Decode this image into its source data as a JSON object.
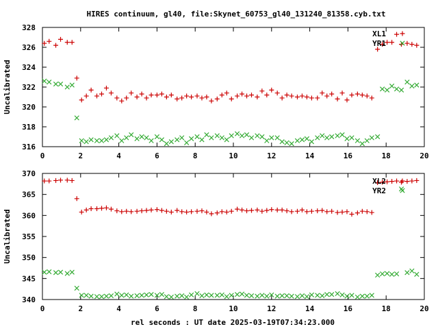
{
  "chart_data": [
    {
      "type": "scatter",
      "title": "HIRES continuum, gl40, file:Skynet_60753_gl40_131240_81358.cyb.txt",
      "xlabel": "",
      "ylabel": "Uncalibrated",
      "xlim": [
        0,
        20
      ],
      "ylim": [
        316,
        328
      ],
      "xticks": [
        0,
        2,
        4,
        6,
        8,
        10,
        12,
        14,
        16,
        18,
        20
      ],
      "yticks": [
        316,
        318,
        320,
        322,
        324,
        326,
        328
      ],
      "legend_position": "top-right",
      "series": [
        {
          "name": "XL1",
          "marker": "+",
          "color": "#cc0000",
          "x": [
            0.1,
            0.35,
            0.7,
            0.95,
            1.3,
            1.55,
            1.8,
            2.05,
            2.3,
            2.55,
            2.85,
            3.1,
            3.35,
            3.6,
            3.9,
            4.15,
            4.4,
            4.65,
            4.95,
            5.2,
            5.45,
            5.7,
            6.0,
            6.25,
            6.5,
            6.75,
            7.05,
            7.3,
            7.55,
            7.8,
            8.1,
            8.35,
            8.6,
            8.85,
            9.15,
            9.4,
            9.65,
            9.9,
            10.2,
            10.45,
            10.7,
            10.95,
            11.25,
            11.5,
            11.75,
            12.0,
            12.3,
            12.55,
            12.8,
            13.05,
            13.35,
            13.6,
            13.85,
            14.1,
            14.4,
            14.65,
            14.9,
            15.15,
            15.45,
            15.7,
            15.95,
            16.2,
            16.5,
            16.75,
            17.0,
            17.25,
            17.55,
            17.8,
            18.05,
            18.3,
            18.55,
            18.8,
            19.1,
            19.35,
            19.6
          ],
          "y": [
            326.4,
            326.6,
            326.2,
            326.8,
            326.5,
            326.5,
            322.9,
            320.7,
            321.1,
            321.7,
            321.1,
            321.3,
            321.9,
            321.4,
            320.9,
            320.6,
            320.9,
            321.4,
            321.0,
            321.3,
            320.9,
            321.2,
            321.2,
            321.3,
            321.0,
            321.2,
            320.8,
            320.9,
            321.1,
            321.0,
            321.1,
            320.9,
            321.0,
            320.6,
            320.8,
            321.2,
            321.4,
            320.8,
            321.1,
            321.3,
            321.1,
            321.2,
            321.0,
            321.6,
            321.2,
            321.7,
            321.4,
            320.9,
            321.2,
            321.1,
            321.0,
            321.1,
            321.0,
            320.9,
            320.9,
            321.4,
            321.1,
            321.3,
            320.8,
            321.4,
            320.7,
            321.2,
            321.3,
            321.2,
            321.1,
            320.9,
            325.8,
            326.3,
            326.5,
            326.5,
            327.3,
            326.3,
            326.4,
            326.3,
            326.2
          ]
        },
        {
          "name": "YR1",
          "marker": "x",
          "color": "#33aa33",
          "x": [
            0.1,
            0.35,
            0.7,
            0.95,
            1.3,
            1.55,
            1.8,
            2.05,
            2.3,
            2.55,
            2.85,
            3.1,
            3.35,
            3.6,
            3.9,
            4.15,
            4.4,
            4.65,
            4.95,
            5.2,
            5.45,
            5.7,
            6.0,
            6.25,
            6.5,
            6.75,
            7.05,
            7.3,
            7.55,
            7.8,
            8.1,
            8.35,
            8.6,
            8.85,
            9.15,
            9.4,
            9.65,
            9.9,
            10.2,
            10.45,
            10.7,
            10.95,
            11.25,
            11.5,
            11.75,
            12.0,
            12.3,
            12.55,
            12.8,
            13.05,
            13.35,
            13.6,
            13.85,
            14.1,
            14.4,
            14.65,
            14.9,
            15.15,
            15.45,
            15.7,
            15.95,
            16.2,
            16.5,
            16.75,
            17.0,
            17.25,
            17.55,
            17.8,
            18.05,
            18.3,
            18.55,
            18.8,
            19.1,
            19.35,
            19.6
          ],
          "y": [
            322.6,
            322.5,
            322.3,
            322.3,
            322.0,
            322.2,
            318.9,
            316.6,
            316.5,
            316.7,
            316.6,
            316.6,
            316.7,
            316.9,
            317.1,
            316.6,
            316.9,
            317.2,
            316.8,
            317.0,
            316.9,
            316.6,
            317.0,
            316.7,
            316.3,
            316.5,
            316.7,
            316.9,
            316.4,
            316.8,
            317.0,
            316.7,
            317.2,
            316.9,
            317.1,
            316.9,
            316.7,
            317.1,
            317.3,
            317.1,
            317.2,
            316.9,
            317.1,
            317.0,
            316.6,
            316.9,
            316.9,
            316.5,
            316.4,
            316.3,
            316.6,
            316.7,
            316.8,
            316.5,
            316.9,
            317.1,
            316.9,
            317.0,
            317.1,
            317.2,
            316.8,
            316.9,
            316.6,
            316.3,
            316.6,
            316.9,
            317.0,
            321.8,
            321.7,
            322.1,
            321.8,
            321.7,
            322.5,
            322.1,
            322.2
          ]
        }
      ]
    },
    {
      "type": "scatter",
      "title": "",
      "xlabel": "rel seconds : UT date 2025-03-19T07:34:23.000",
      "ylabel": "Uncalibrated",
      "xlim": [
        0,
        20
      ],
      "ylim": [
        340,
        370
      ],
      "xticks": [
        0,
        2,
        4,
        6,
        8,
        10,
        12,
        14,
        16,
        18,
        20
      ],
      "yticks": [
        340,
        345,
        350,
        355,
        360,
        365,
        370
      ],
      "legend_position": "top-right",
      "series": [
        {
          "name": "XL2",
          "marker": "+",
          "color": "#cc0000",
          "x": [
            0.1,
            0.35,
            0.7,
            0.95,
            1.3,
            1.55,
            1.8,
            2.05,
            2.3,
            2.55,
            2.85,
            3.1,
            3.35,
            3.6,
            3.9,
            4.15,
            4.4,
            4.65,
            4.95,
            5.2,
            5.45,
            5.7,
            6.0,
            6.25,
            6.5,
            6.75,
            7.05,
            7.3,
            7.55,
            7.8,
            8.1,
            8.35,
            8.6,
            8.85,
            9.15,
            9.4,
            9.65,
            9.9,
            10.2,
            10.45,
            10.7,
            10.95,
            11.25,
            11.5,
            11.75,
            12.0,
            12.3,
            12.55,
            12.8,
            13.05,
            13.35,
            13.6,
            13.85,
            14.1,
            14.4,
            14.65,
            14.9,
            15.15,
            15.45,
            15.7,
            15.95,
            16.2,
            16.5,
            16.75,
            17.0,
            17.25,
            17.55,
            17.8,
            18.05,
            18.3,
            18.55,
            18.8,
            19.1,
            19.35,
            19.6
          ],
          "y": [
            368.2,
            368.2,
            368.3,
            368.4,
            368.4,
            368.3,
            364.0,
            360.8,
            361.3,
            361.6,
            361.6,
            361.7,
            361.8,
            361.5,
            361.1,
            360.9,
            361.0,
            360.9,
            361.0,
            361.1,
            361.2,
            361.3,
            361.4,
            361.2,
            361.0,
            360.8,
            361.2,
            360.9,
            360.8,
            360.9,
            361.0,
            361.1,
            360.8,
            360.4,
            360.6,
            360.9,
            360.8,
            361.0,
            361.5,
            361.3,
            361.1,
            361.2,
            361.3,
            361.0,
            361.2,
            361.4,
            361.3,
            361.3,
            361.1,
            360.9,
            361.0,
            361.3,
            360.9,
            361.0,
            361.1,
            361.2,
            360.9,
            361.0,
            360.7,
            360.8,
            360.9,
            360.3,
            360.6,
            361.0,
            360.9,
            360.7,
            367.8,
            367.9,
            368.0,
            368.1,
            368.2,
            367.9,
            368.1,
            368.2,
            368.3
          ]
        },
        {
          "name": "YR2",
          "marker": "x",
          "color": "#33aa33",
          "x": [
            0.1,
            0.35,
            0.7,
            0.95,
            1.3,
            1.55,
            1.8,
            2.05,
            2.3,
            2.55,
            2.85,
            3.1,
            3.35,
            3.6,
            3.9,
            4.15,
            4.4,
            4.65,
            4.95,
            5.2,
            5.45,
            5.7,
            6.0,
            6.25,
            6.5,
            6.75,
            7.05,
            7.3,
            7.55,
            7.8,
            8.1,
            8.35,
            8.6,
            8.85,
            9.15,
            9.4,
            9.65,
            9.9,
            10.2,
            10.45,
            10.7,
            10.95,
            11.25,
            11.5,
            11.75,
            12.0,
            12.3,
            12.55,
            12.8,
            13.05,
            13.35,
            13.6,
            13.85,
            14.1,
            14.4,
            14.65,
            14.9,
            15.15,
            15.45,
            15.7,
            15.95,
            16.2,
            16.5,
            16.75,
            17.0,
            17.25,
            17.55,
            17.8,
            18.05,
            18.3,
            18.55,
            18.8,
            19.1,
            19.35,
            19.6
          ],
          "y": [
            346.5,
            346.6,
            346.4,
            346.5,
            346.2,
            346.5,
            342.7,
            341.0,
            341.0,
            340.8,
            340.7,
            340.7,
            340.8,
            340.9,
            341.3,
            341.0,
            341.1,
            340.8,
            340.9,
            341.0,
            341.1,
            341.2,
            341.0,
            341.2,
            340.7,
            340.6,
            340.8,
            340.9,
            340.6,
            341.1,
            341.4,
            340.9,
            341.1,
            341.0,
            341.0,
            341.1,
            340.7,
            341.0,
            341.2,
            341.3,
            341.0,
            340.9,
            340.8,
            341.0,
            340.8,
            341.1,
            340.8,
            340.9,
            340.9,
            340.8,
            340.7,
            340.9,
            340.7,
            341.1,
            341.0,
            340.9,
            341.2,
            341.2,
            341.4,
            341.1,
            340.8,
            341.0,
            340.6,
            340.8,
            340.8,
            341.0,
            345.8,
            346.1,
            346.2,
            346.0,
            346.1,
            366.3,
            346.4,
            346.8,
            346.0
          ]
        }
      ]
    }
  ]
}
